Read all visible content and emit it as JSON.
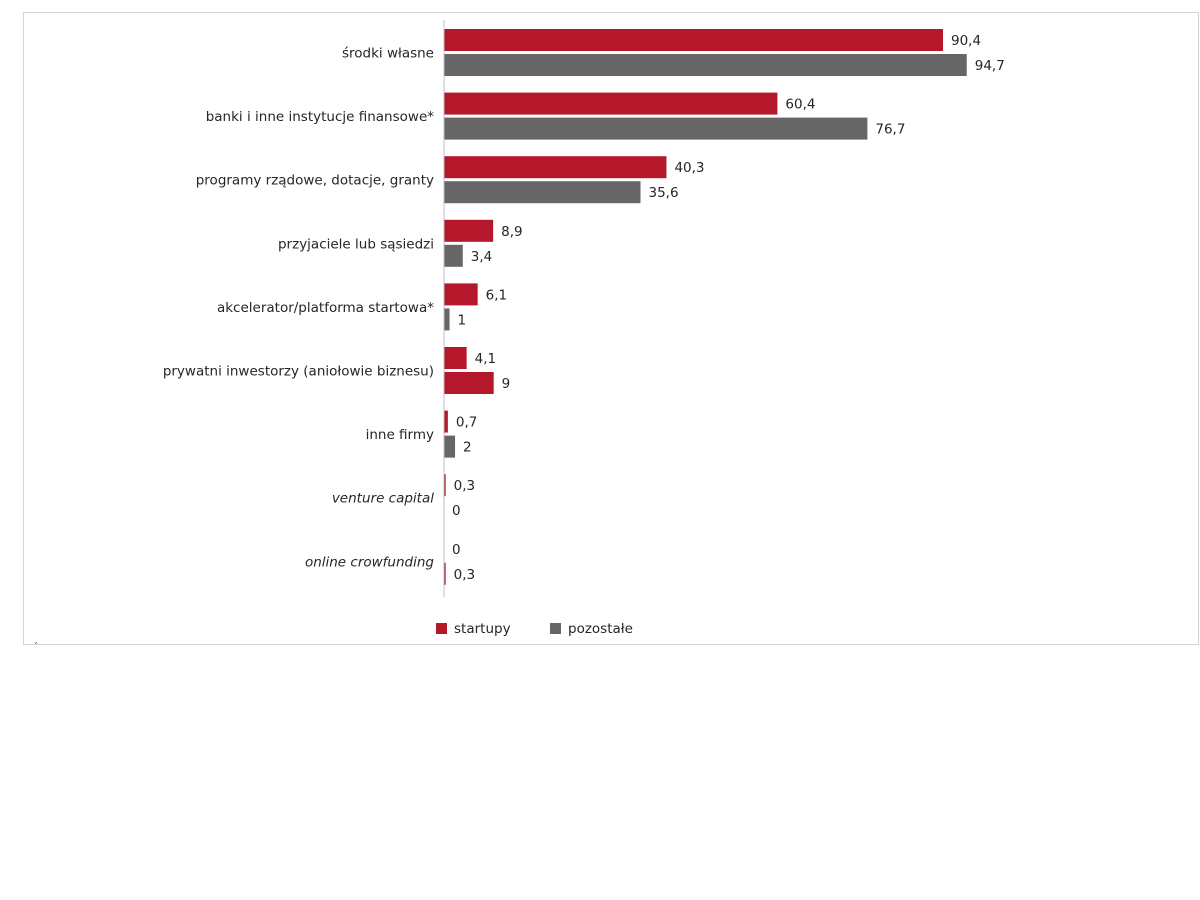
{
  "chart_data": {
    "type": "bar",
    "orientation": "horizontal",
    "categories": [
      "środki własne",
      "banki i inne instytucje finansowe*",
      "programy rządowe, dotacje, granty",
      "przyjaciele lub sąsiedzi",
      "akcelerator/platforma startowa*",
      "prywatni inwestorzy (aniołowie biznesu)",
      "inne firmy",
      "venture capital",
      "online crowfunding"
    ],
    "italic_categories": [
      "venture capital",
      "online crowfunding"
    ],
    "series": [
      {
        "name": "startupy",
        "color": "#b5172b",
        "values": [
          90.4,
          60.4,
          40.3,
          8.9,
          6.1,
          4.1,
          0.7,
          0.3,
          0
        ],
        "labels": [
          "90,4",
          "60,4",
          "40,3",
          "8,9",
          "6,1",
          "4,1",
          "0,7",
          "0,3",
          "0"
        ]
      },
      {
        "name": "pozostałe",
        "color": "#666666",
        "values": [
          94.7,
          76.7,
          35.6,
          3.4,
          1,
          9,
          2,
          0,
          0.3
        ],
        "labels": [
          "94,7",
          "76,7",
          "35,6",
          "3,4",
          "1",
          "9",
          "2",
          "0",
          "0,3"
        ],
        "point_colors": [
          null,
          null,
          null,
          null,
          null,
          "#b5172b",
          null,
          null,
          "#b5172b"
        ]
      }
    ],
    "xlim": [
      0,
      100
    ],
    "grid": false,
    "legend_position": "bottom"
  }
}
